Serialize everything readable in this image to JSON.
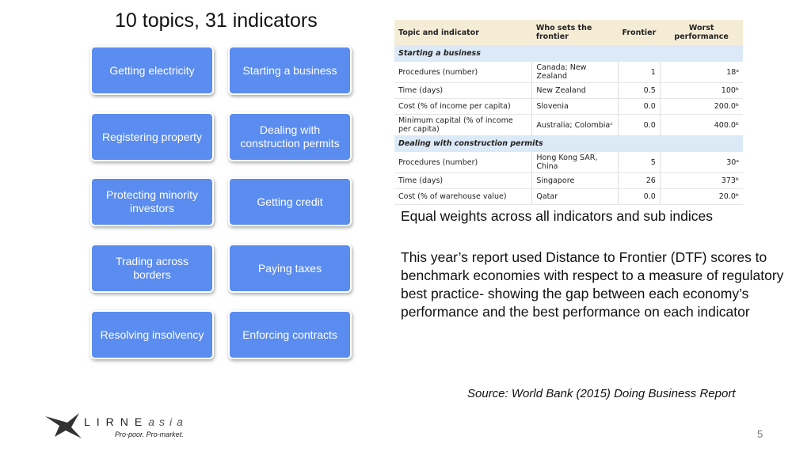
{
  "title": "10 topics, 31 indicators",
  "topics": [
    "Getting electricity",
    "Starting a business",
    "Registering property",
    "Dealing with construction permits",
    "Protecting minority investors",
    "Getting credit",
    "Trading across borders",
    "Paying taxes",
    "Resolving insolvency",
    "Enforcing contracts"
  ],
  "table": {
    "header": [
      "Topic and indicator",
      "Who sets the frontier",
      "Frontier",
      "Worst performance"
    ],
    "rows": [
      [
        "Starting a business"
      ],
      [
        "Procedures (number)",
        "Canada; New Zealand",
        "1",
        "18ᵃ"
      ],
      [
        "Time (days)",
        "New Zealand",
        "0.5",
        "100ᵇ"
      ],
      [
        "Cost (% of income per capita)",
        "Slovenia",
        "0.0",
        "200.0ᵇ"
      ],
      [
        "Minimum capital (% of income per capita)",
        "Australia; Colombiaᶜ",
        "0.0",
        "400.0ᵇ"
      ],
      [
        "Dealing with construction permits"
      ],
      [
        "Procedures (number)",
        "Hong Kong SAR, China",
        "5",
        "30ᵃ"
      ],
      [
        "Time (days)",
        "Singapore",
        "26",
        "373ᵇ"
      ],
      [
        "Cost (% of warehouse value)",
        "Qatar",
        "0.0",
        "20.0ᵇ"
      ]
    ]
  },
  "paragraphs": [
    "Equal weights across all indicators and sub indices",
    "This year’s report used Distance to Frontier (DTF) scores to benchmark economies with respect to a measure of regulatory best practice- showing the gap between each economy’s performance and the best performance on each indicator"
  ],
  "source": "Source: World Bank (2015) Doing Business Report",
  "logo": {
    "name": "LIRNE",
    "suffix": "asia",
    "tagline": "Pro-poor. Pro-market."
  },
  "page_number": "5"
}
